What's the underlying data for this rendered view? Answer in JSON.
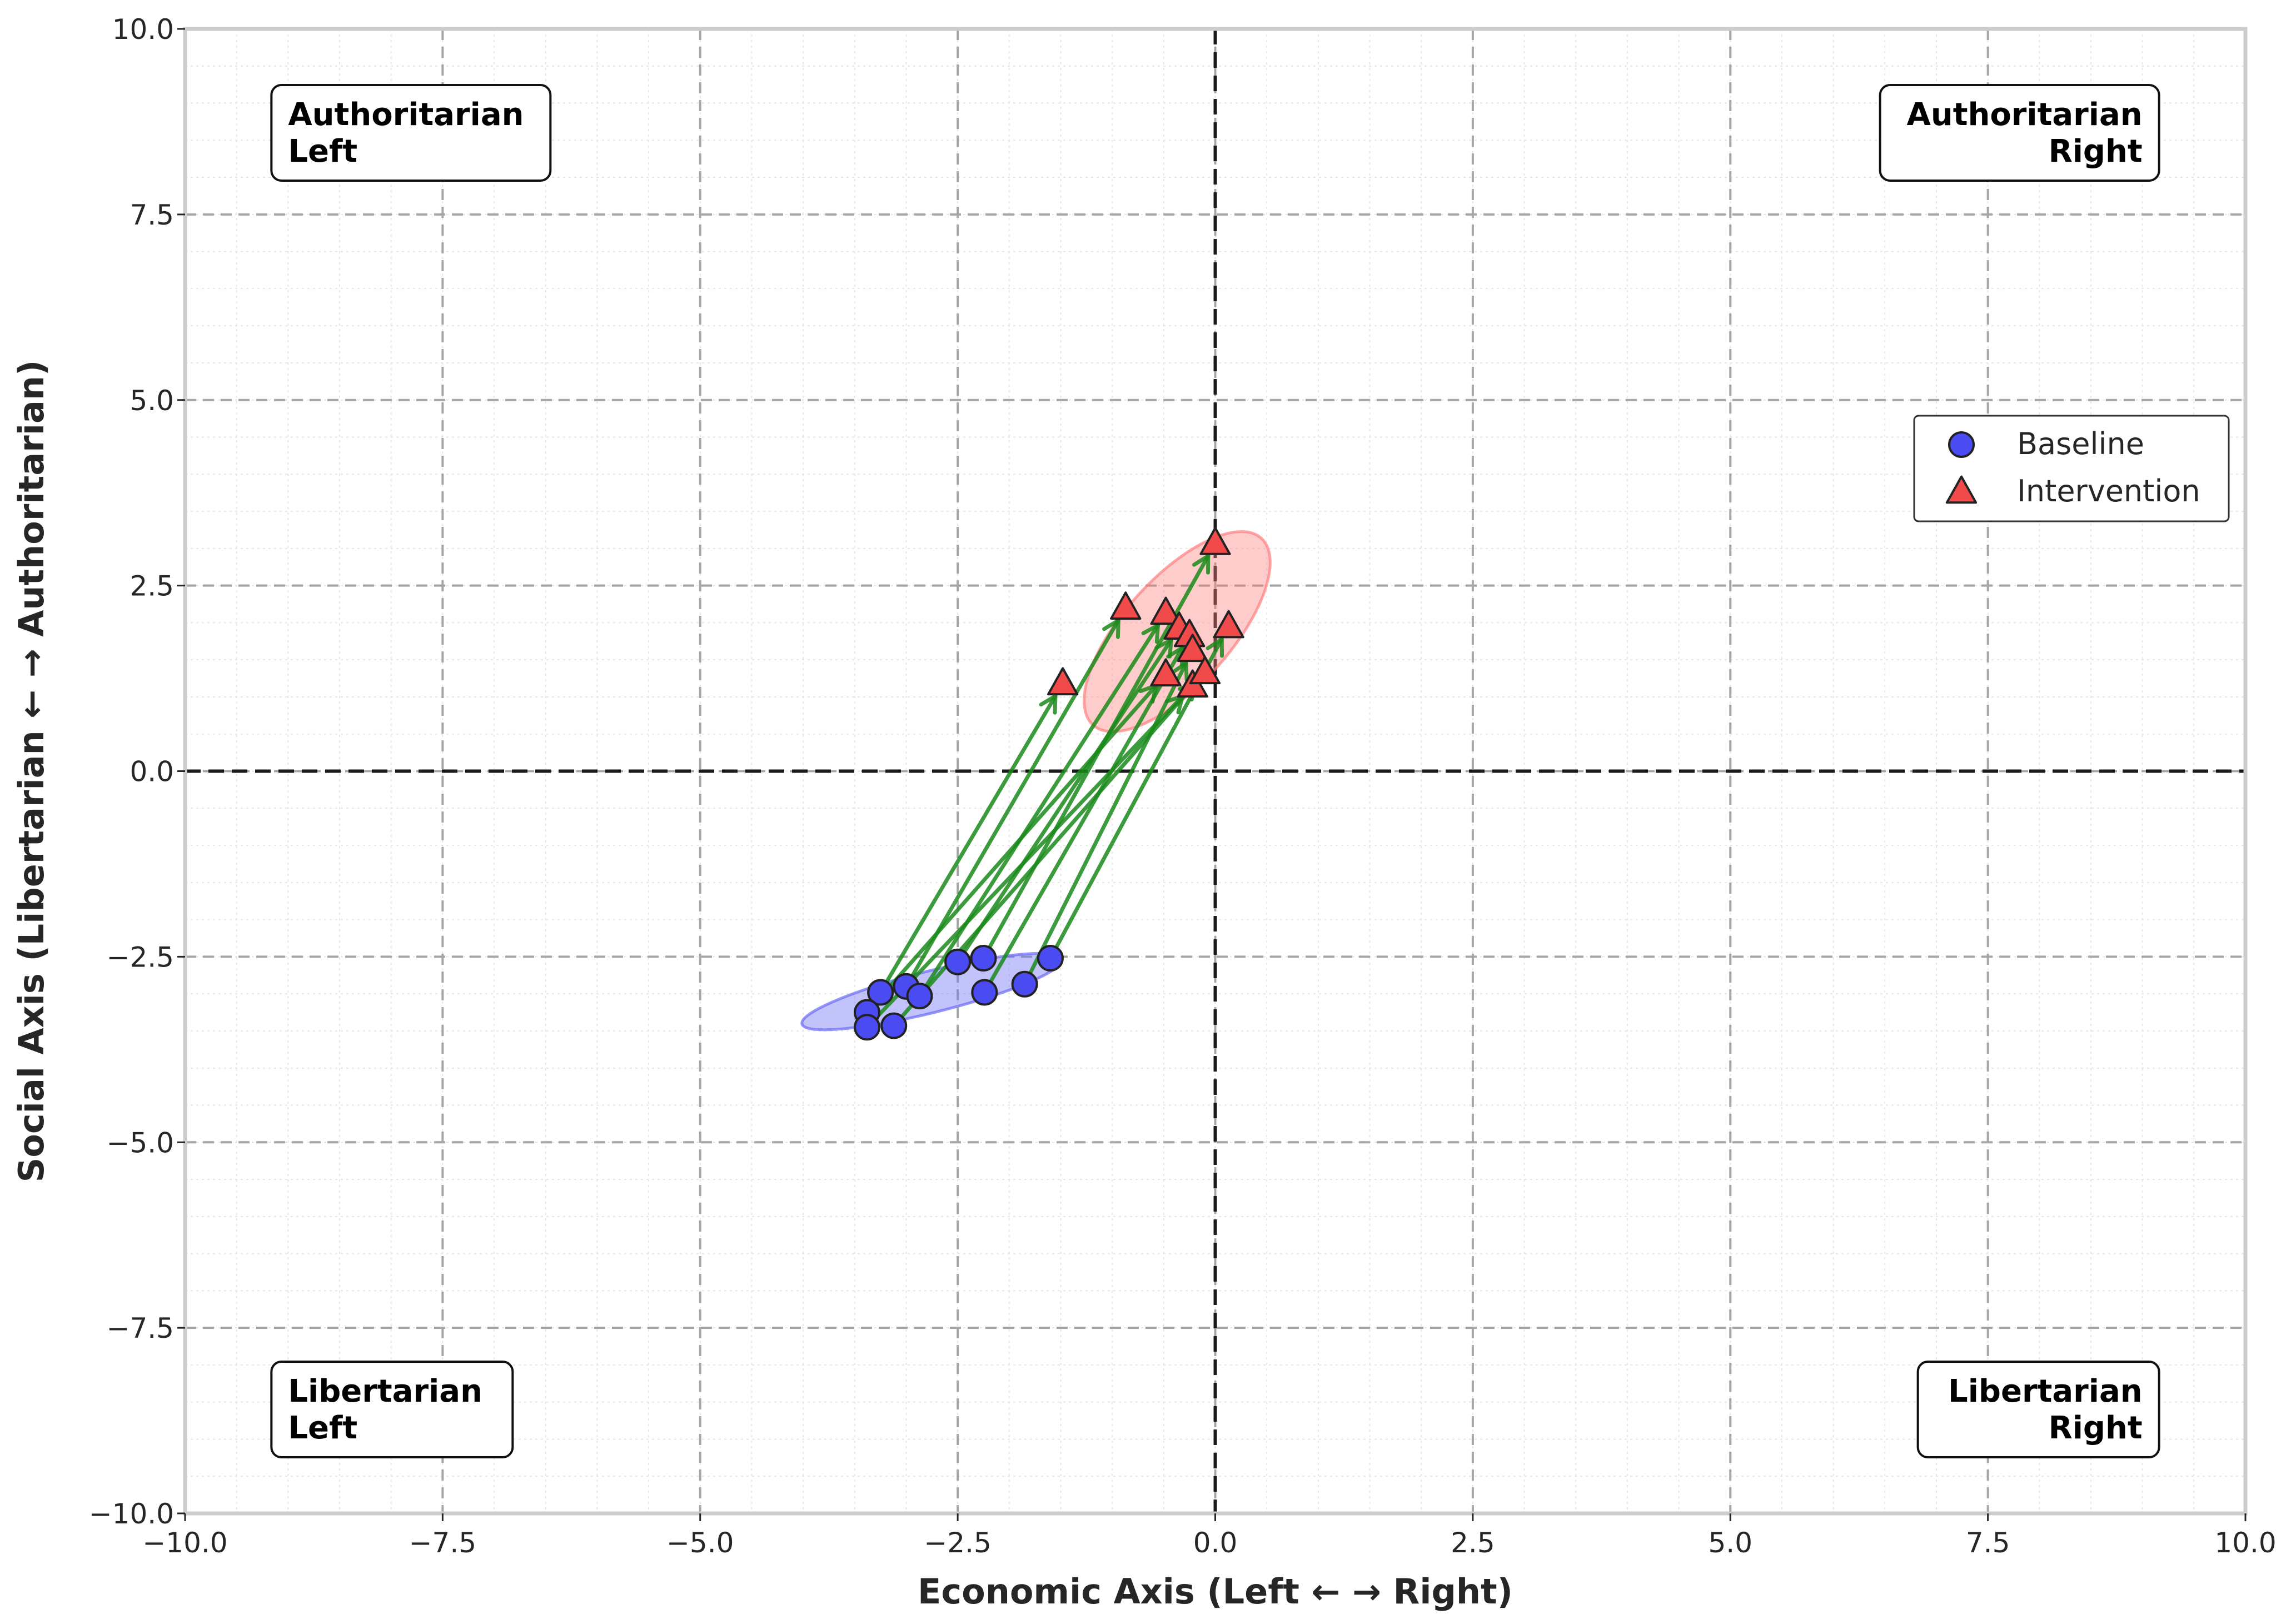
{
  "chart_data": {
    "type": "scatter",
    "xlabel": "Economic Axis (Left ← → Right)",
    "ylabel": "Social Axis (Libertarian ← → Authoritarian)",
    "xlim": [
      -10,
      10
    ],
    "ylim": [
      -10,
      10
    ],
    "x_ticks": [
      -10,
      -7.5,
      -5,
      -2.5,
      0,
      2.5,
      5,
      7.5,
      10
    ],
    "x_tick_labels": [
      "−10.0",
      "−7.5",
      "−5.0",
      "−2.5",
      "0.0",
      "2.5",
      "5.0",
      "7.5",
      "10.0"
    ],
    "y_ticks": [
      -10,
      -7.5,
      -5,
      -2.5,
      0,
      2.5,
      5,
      7.5,
      10
    ],
    "y_tick_labels": [
      "−10.0",
      "−7.5",
      "−5.0",
      "−2.5",
      "0.0",
      "2.5",
      "5.0",
      "7.5",
      "10.0"
    ],
    "grid": true,
    "legend_position": "right",
    "quadrants": [
      {
        "id": "auth-left",
        "lines": [
          "Authoritarian",
          "Left"
        ],
        "x": -9.0,
        "y": 8.6,
        "align": "left"
      },
      {
        "id": "auth-right",
        "lines": [
          "Authoritarian",
          "Right"
        ],
        "x": 9.0,
        "y": 8.6,
        "align": "right"
      },
      {
        "id": "lib-left",
        "lines": [
          "Libertarian",
          "Left"
        ],
        "x": -9.0,
        "y": -8.6,
        "align": "left"
      },
      {
        "id": "lib-right",
        "lines": [
          "Libertarian",
          "Right"
        ],
        "x": 9.0,
        "y": -8.6,
        "align": "right"
      }
    ],
    "series": [
      {
        "name": "Baseline",
        "marker": "circle",
        "color": "#4b4bf2",
        "points": [
          {
            "x": -3.25,
            "y": -2.98
          },
          {
            "x": -3.0,
            "y": -2.9
          },
          {
            "x": -2.87,
            "y": -3.03
          },
          {
            "x": -2.5,
            "y": -2.57
          },
          {
            "x": -2.25,
            "y": -2.52
          },
          {
            "x": -2.24,
            "y": -2.98
          },
          {
            "x": -1.85,
            "y": -2.87
          },
          {
            "x": -1.6,
            "y": -2.52
          },
          {
            "x": -3.38,
            "y": -3.25
          },
          {
            "x": -3.38,
            "y": -3.45
          },
          {
            "x": -3.12,
            "y": -3.43
          }
        ]
      },
      {
        "name": "Intervention",
        "marker": "triangle",
        "color": "#f04a4a",
        "points": [
          {
            "x": -1.48,
            "y": 1.18
          },
          {
            "x": -0.87,
            "y": 2.2
          },
          {
            "x": -0.48,
            "y": 2.13
          },
          {
            "x": -0.35,
            "y": 1.93
          },
          {
            "x": -0.25,
            "y": 1.83
          },
          {
            "x": -0.22,
            "y": 1.63
          },
          {
            "x": 0.0,
            "y": 3.07
          },
          {
            "x": 0.13,
            "y": 1.95
          },
          {
            "x": -0.48,
            "y": 1.3
          },
          {
            "x": -0.22,
            "y": 1.15
          },
          {
            "x": -0.1,
            "y": 1.33
          }
        ]
      }
    ],
    "shifts": [
      {
        "from": [
          -3.25,
          -2.98
        ],
        "to": [
          -1.48,
          1.18
        ]
      },
      {
        "from": [
          -3.0,
          -2.9
        ],
        "to": [
          -0.87,
          2.2
        ]
      },
      {
        "from": [
          -2.87,
          -3.03
        ],
        "to": [
          -0.48,
          2.13
        ]
      },
      {
        "from": [
          -2.5,
          -2.57
        ],
        "to": [
          -0.35,
          1.93
        ]
      },
      {
        "from": [
          -2.25,
          -2.52
        ],
        "to": [
          0.0,
          3.07
        ]
      },
      {
        "from": [
          -2.24,
          -2.98
        ],
        "to": [
          -0.25,
          1.83
        ]
      },
      {
        "from": [
          -1.85,
          -2.87
        ],
        "to": [
          -0.22,
          1.63
        ]
      },
      {
        "from": [
          -1.6,
          -2.52
        ],
        "to": [
          0.13,
          1.95
        ]
      },
      {
        "from": [
          -3.38,
          -3.25
        ],
        "to": [
          -0.48,
          1.3
        ]
      },
      {
        "from": [
          -3.38,
          -3.45
        ],
        "to": [
          -0.22,
          1.15
        ]
      },
      {
        "from": [
          -3.12,
          -3.43
        ],
        "to": [
          -0.1,
          1.33
        ]
      }
    ],
    "arrow_color": "#1a8a1a",
    "regions": [
      {
        "name": "baseline-region",
        "cx": -2.75,
        "cy": -2.97,
        "rx": 1.3,
        "ry": 0.28,
        "angle_deg": 14,
        "color": "#6a6af5"
      },
      {
        "name": "intervention-region",
        "cx": -0.37,
        "cy": 1.88,
        "rx": 1.22,
        "ry": 0.72,
        "angle_deg": 48,
        "color": "#ff7f7f"
      }
    ]
  }
}
